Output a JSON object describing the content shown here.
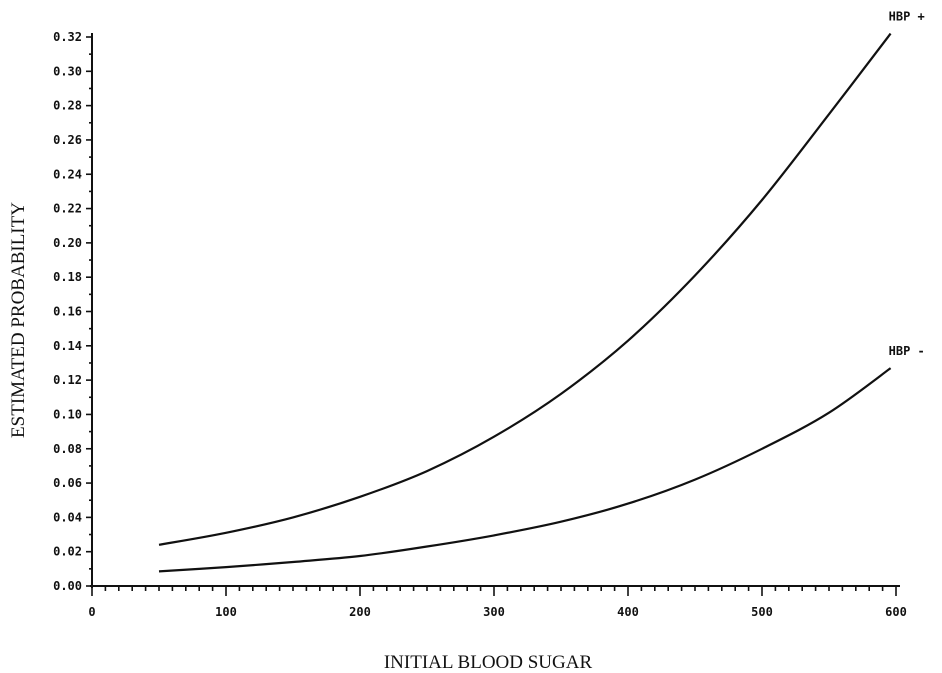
{
  "chart_data": {
    "type": "line",
    "xlabel": "INITIAL BLOOD SUGAR",
    "ylabel": "ESTIMATED PROBABILITY",
    "xlim": [
      0,
      600
    ],
    "ylim": [
      0,
      0.32
    ],
    "x_tick_labels": [
      "0",
      "100",
      "200",
      "300",
      "400",
      "500",
      "600"
    ],
    "y_tick_labels": [
      "0.00",
      "0.02",
      "0.04",
      "0.06",
      "0.08",
      "0.10",
      "0.12",
      "0.14",
      "0.16",
      "0.18",
      "0.20",
      "0.22",
      "0.24",
      "0.26",
      "0.28",
      "0.30",
      "0.32"
    ],
    "grid": false,
    "series": [
      {
        "name": "HBP +",
        "x": [
          50,
          100,
          150,
          200,
          250,
          300,
          350,
          400,
          450,
          500,
          550,
          596
        ],
        "y": [
          0.024,
          0.031,
          0.04,
          0.052,
          0.067,
          0.087,
          0.112,
          0.143,
          0.181,
          0.225,
          0.275,
          0.322
        ]
      },
      {
        "name": "HBP -",
        "x": [
          50,
          100,
          150,
          200,
          250,
          300,
          350,
          400,
          450,
          500,
          550,
          596
        ],
        "y": [
          0.0085,
          0.011,
          0.014,
          0.0175,
          0.023,
          0.0295,
          0.0375,
          0.048,
          0.062,
          0.08,
          0.101,
          0.127
        ]
      }
    ]
  }
}
